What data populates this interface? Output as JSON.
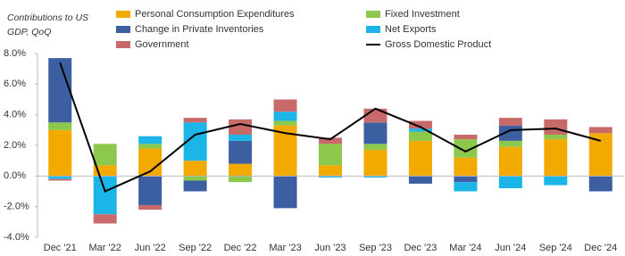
{
  "chart_data": {
    "type": "bar",
    "stacked": true,
    "title_lines": [
      "Contributions to US",
      "GDP, QoQ"
    ],
    "categories": [
      "Dec '21",
      "Mar '22",
      "Jun '22",
      "Sep '22",
      "Dec '22",
      "Mar '23",
      "Jun '23",
      "Sep '23",
      "Dec '23",
      "Mar '24",
      "Jun '24",
      "Sep '24",
      "Dec '24"
    ],
    "series": [
      {
        "name": "Personal Consumption Expenditures",
        "color": "#f2a900",
        "type": "bar",
        "values": [
          3.0,
          0.7,
          1.8,
          1.0,
          0.8,
          3.3,
          0.7,
          1.7,
          2.3,
          1.2,
          1.9,
          2.4,
          2.8
        ]
      },
      {
        "name": "Fixed Investment",
        "color": "#8cc84b",
        "type": "bar",
        "values": [
          0.5,
          1.4,
          0.3,
          -0.3,
          -0.4,
          0.3,
          1.4,
          0.4,
          0.6,
          1.2,
          0.4,
          0.3,
          0.0
        ]
      },
      {
        "name": "Change in Private Inventories",
        "color": "#3b5fa0",
        "type": "bar",
        "values": [
          4.2,
          0.0,
          -1.9,
          -0.7,
          1.5,
          -2.1,
          0.0,
          1.4,
          -0.5,
          -0.4,
          1.0,
          0.0,
          -1.0
        ]
      },
      {
        "name": "Net Exports",
        "color": "#1cb5e8",
        "type": "bar",
        "values": [
          -0.2,
          -2.5,
          0.5,
          2.5,
          0.4,
          0.6,
          -0.1,
          -0.1,
          0.2,
          -0.6,
          -0.8,
          -0.6,
          0.0
        ]
      },
      {
        "name": "Government",
        "color": "#c96a6a",
        "type": "bar",
        "values": [
          -0.1,
          -0.6,
          -0.3,
          0.3,
          1.0,
          0.8,
          0.4,
          0.9,
          0.5,
          0.3,
          0.5,
          1.0,
          0.4
        ]
      },
      {
        "name": "Gross Domestic Product",
        "color": "#000000",
        "type": "line",
        "values": [
          7.4,
          -1.0,
          0.3,
          2.7,
          3.4,
          2.8,
          2.4,
          4.4,
          3.2,
          1.6,
          3.0,
          3.1,
          2.3
        ]
      }
    ],
    "ylim": [
      -4,
      8
    ],
    "yticks": [
      {
        "value": -4,
        "label": "-4.0%"
      },
      {
        "value": -2,
        "label": "-2.0%"
      },
      {
        "value": 0,
        "label": "0.0%"
      },
      {
        "value": 2,
        "label": "2.0%"
      },
      {
        "value": 4,
        "label": "4.0%"
      },
      {
        "value": 6,
        "label": "6.0%"
      },
      {
        "value": 8,
        "label": "8.0%"
      }
    ],
    "grid": false
  }
}
